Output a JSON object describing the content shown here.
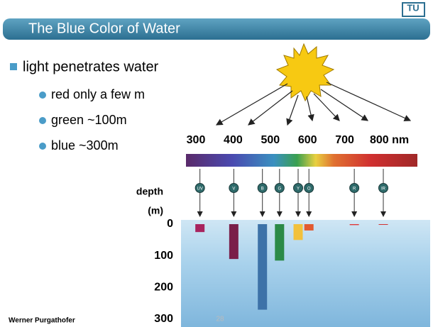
{
  "header": {
    "title": "The Blue Color of Water",
    "logo": "TU"
  },
  "bullets": {
    "main": "light penetrates water",
    "items": [
      "red only a few m",
      "green ~100m",
      "blue ~300m"
    ]
  },
  "figure": {
    "wavelength_axis": {
      "lim": [
        300,
        800
      ],
      "ticks": [
        300,
        400,
        500,
        600,
        700,
        {
          "value": 800,
          "label": "800 nm"
        }
      ]
    },
    "depth_axis": {
      "title": [
        "depth",
        "(m)"
      ],
      "lim": [
        0,
        300
      ],
      "ticks": [
        0,
        100,
        200,
        300
      ]
    },
    "bands": [
      {
        "name": "UV",
        "wavelength": 307,
        "depth": 25,
        "color": "#a8245e"
      },
      {
        "name": "V",
        "wavelength": 398,
        "depth": 110,
        "color": "#7a1f4a"
      },
      {
        "name": "B",
        "wavelength": 475,
        "depth": 270,
        "color": "#3d72a8"
      },
      {
        "name": "G",
        "wavelength": 521,
        "depth": 115,
        "color": "#2b8a47"
      },
      {
        "name": "Y",
        "wavelength": 571,
        "depth": 50,
        "color": "#f2c13c"
      },
      {
        "name": "O",
        "wavelength": 600,
        "depth": 20,
        "color": "#e25a30"
      },
      {
        "name": "R",
        "wavelength": 722,
        "depth": 3,
        "color": "#e03434"
      },
      {
        "name": "IR",
        "wavelength": 800,
        "depth": 2,
        "color": "#d03030"
      }
    ]
  },
  "footer": {
    "author": "Werner Purgathofer",
    "page": "28"
  }
}
